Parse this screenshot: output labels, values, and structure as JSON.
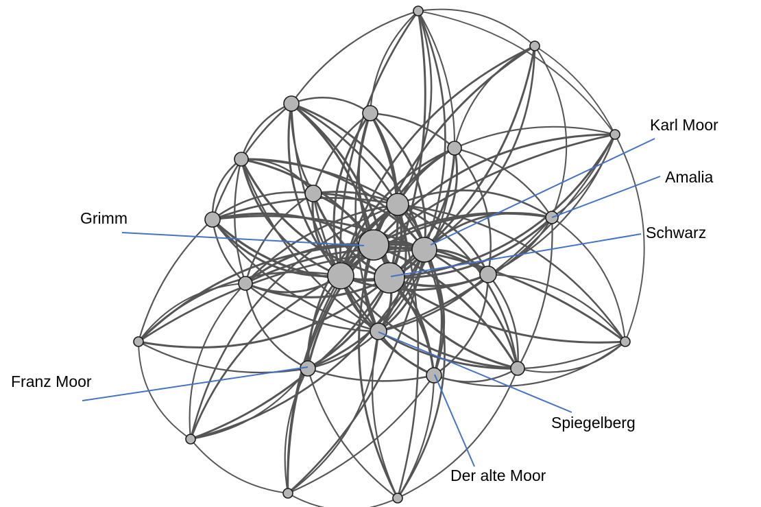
{
  "colors": {
    "edge": "#555555",
    "node_fill": "#b5b5b5",
    "node_stroke": "#1a1a1a",
    "leader": "#4472c4",
    "label": "#000000"
  },
  "labels": {
    "karl_moor": "Karl Moor",
    "amalia": "Amalia",
    "grimm": "Grimm",
    "schwarz": "Schwarz",
    "franz_moor": "Franz Moor",
    "spiegelberg": "Spiegelberg",
    "der_alte_moor": "Der alte Moor"
  }
}
